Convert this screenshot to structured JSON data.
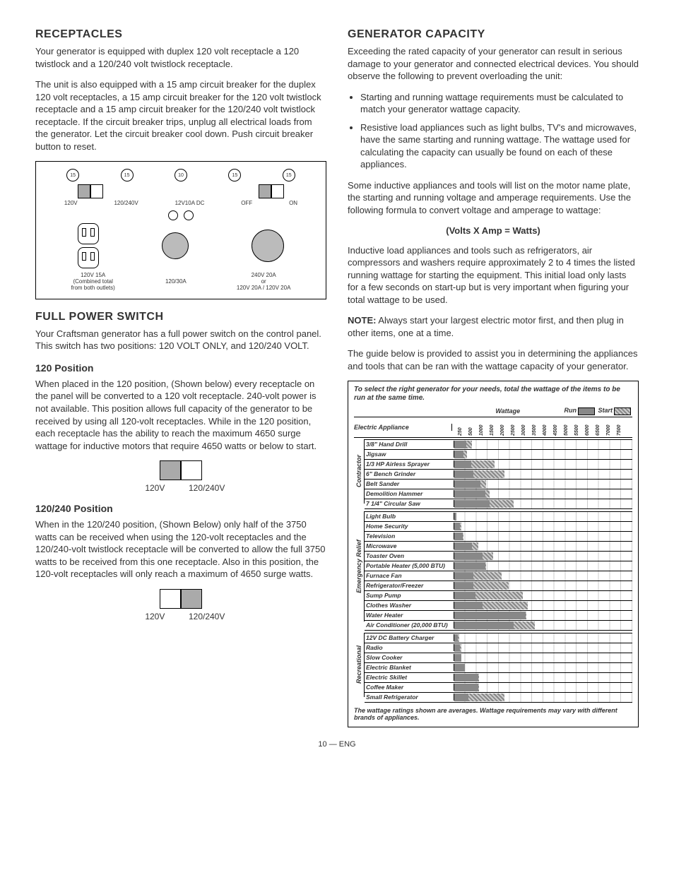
{
  "left": {
    "receptacles": {
      "heading": "RECEPTACLES",
      "p1": "Your generator is equipped with duplex 120 volt receptacle a 120 twistlock and a 120/240 volt twistlock receptacle.",
      "p2": "The unit is also equipped with a 15 amp circuit breaker for the duplex 120 volt receptacles, a 15 amp circuit breaker for the 120 volt twistlock receptacle and a 15 amp circuit breaker for the 120/240 volt twistlock receptacle. If the circuit breaker trips, unplug all electrical loads from the generator. Let the circuit breaker cool down. Push circuit breaker button to reset."
    },
    "panel": {
      "breakers": [
        "15",
        "15",
        "10",
        "15",
        "15"
      ],
      "sw1_left": "120V",
      "sw1_right": "120/240V",
      "dc_label": "12V10A DC",
      "off": "OFF",
      "on": "ON",
      "duplex_caption": "120V 15A\n(Combined total\nfrom both outlets)",
      "twist1_caption": "120/30A",
      "twist2_caption_top": "240V 20A",
      "twist2_caption_or": "or",
      "twist2_caption_bot": "120V 20A / 120V 20A"
    },
    "fps": {
      "heading": "FULL POWER SWITCH",
      "p1": "Your Craftsman generator has a full power switch on the control panel. This switch has two positions: 120 VOLT ONLY, and 120/240 VOLT.",
      "pos120_h": "120 Position",
      "pos120_p": "When placed in the 120 position, (Shown below) every receptacle on the panel will be converted to a 120 volt receptacle. 240-volt power is not available. This position allows full capacity of the generator to be received by using all 120-volt receptacles. While in the 120 position, each receptacle has the ability to reach the maximum 4650 surge wattage for inductive motors that require 4650 watts or below to start.",
      "sw_l": "120V",
      "sw_r": "120/240V",
      "pos240_h": "120/240 Position",
      "pos240_p": "When in the 120/240 position, (Shown Below) only half of the 3750 watts can be received when using the 120-volt receptacles and the 120/240-volt twistlock receptacle will be converted to allow the full 3750 watts to be received from this one receptacle. Also in this position, the 120-volt receptacles will only reach a maximum of 4650 surge watts."
    }
  },
  "right": {
    "cap": {
      "heading": "GENERATOR CAPACITY",
      "p1": "Exceeding the rated capacity of your generator can result in serious damage to your generator and connected electrical devices. You should observe the following to prevent overloading the unit:",
      "b1": "Starting and running wattage requirements must be calculated to match your generator wattage capacity.",
      "b2": "Resistive load appliances such as light bulbs, TV's and microwaves, have the same starting and running wattage. The wattage used for calculating the capacity can usually be found on each of these appliances.",
      "p2": "Some inductive appliances and tools will list on the motor name plate, the starting and running voltage and amperage requirements. Use the following formula to convert voltage and amperage to wattage:",
      "formula": "(Volts X Amp = Watts)",
      "p3": "Inductive load appliances and tools such as refrigerators, air compressors and washers require approximately 2 to 4 times the listed running wattage for starting the equipment. This initial load only lasts for a few seconds on start-up but is very important when figuring your total wattage to be used.",
      "note_label": "NOTE:",
      "note": " Always start your largest electric motor first, and then plug in other items, one at a time.",
      "p4": "The guide below is provided to assist you in determining the appliances and tools that can be ran with the wattage capacity of your generator."
    },
    "chart": {
      "title": "To select the right generator for your needs, total the wattage of the items to be run at the same time.",
      "appliance_h": "Electric Appliance",
      "wattage_h": "Wattage",
      "run_l": "Run",
      "start_l": "Start",
      "max": 7500,
      "ticks": [
        "100",
        "250",
        "500",
        "1000",
        "1500",
        "2000",
        "2500",
        "3000",
        "3500",
        "4000",
        "4500",
        "5000",
        "5500",
        "6000",
        "6500",
        "7000",
        "7500"
      ],
      "groups": [
        {
          "name": "Contractor",
          "rows": [
            {
              "name": "3/8\" Hand Drill",
              "run": 500,
              "start": 750
            },
            {
              "name": "Jigsaw",
              "run": 400,
              "start": 550
            },
            {
              "name": "1/3 HP Airless Sprayer",
              "run": 700,
              "start": 1700
            },
            {
              "name": "6\" Bench Grinder",
              "run": 800,
              "start": 2100
            },
            {
              "name": "Belt Sander",
              "run": 1100,
              "start": 1350
            },
            {
              "name": "Demolition Hammer",
              "run": 1300,
              "start": 1500
            },
            {
              "name": "7 1/4\" Circular Saw",
              "run": 1500,
              "start": 2500
            }
          ]
        },
        {
          "name": "Emergency Relief",
          "rows": [
            {
              "name": "Light Bulb",
              "run": 100,
              "start": 100
            },
            {
              "name": "Home Security",
              "run": 250,
              "start": 300
            },
            {
              "name": "Television",
              "run": 350,
              "start": 400
            },
            {
              "name": "Microwave",
              "run": 750,
              "start": 1000
            },
            {
              "name": "Toaster Oven",
              "run": 1200,
              "start": 1650
            },
            {
              "name": "Portable Heater (5,000 BTU)",
              "run": 1300,
              "start": 1350
            },
            {
              "name": "Furnace Fan",
              "run": 800,
              "start": 2000
            },
            {
              "name": "Refrigerator/Freezer",
              "run": 800,
              "start": 2300
            },
            {
              "name": "Sump Pump",
              "run": 900,
              "start": 2900
            },
            {
              "name": "Clothes Washer",
              "run": 1200,
              "start": 3100
            },
            {
              "name": "Water Heater",
              "run": 3000,
              "start": 3050
            },
            {
              "name": "Air Conditioner (20,000 BTU)",
              "run": 2500,
              "start": 3400
            }
          ]
        },
        {
          "name": "Recreational",
          "rows": [
            {
              "name": "12V DC Battery Charger",
              "run": 150,
              "start": 200
            },
            {
              "name": "Radio",
              "run": 250,
              "start": 300
            },
            {
              "name": "Slow Cooker",
              "run": 300,
              "start": 300
            },
            {
              "name": "Electric Blanket",
              "run": 450,
              "start": 450
            },
            {
              "name": "Electric Skillet",
              "run": 1000,
              "start": 1050
            },
            {
              "name": "Coffee Maker",
              "run": 1000,
              "start": 1050
            },
            {
              "name": "Small Refrigerator",
              "run": 600,
              "start": 2100
            }
          ]
        }
      ],
      "footnote": "The wattage ratings shown are averages. Wattage requirements may vary with different brands of appliances."
    }
  },
  "page_num": "10 — ENG"
}
